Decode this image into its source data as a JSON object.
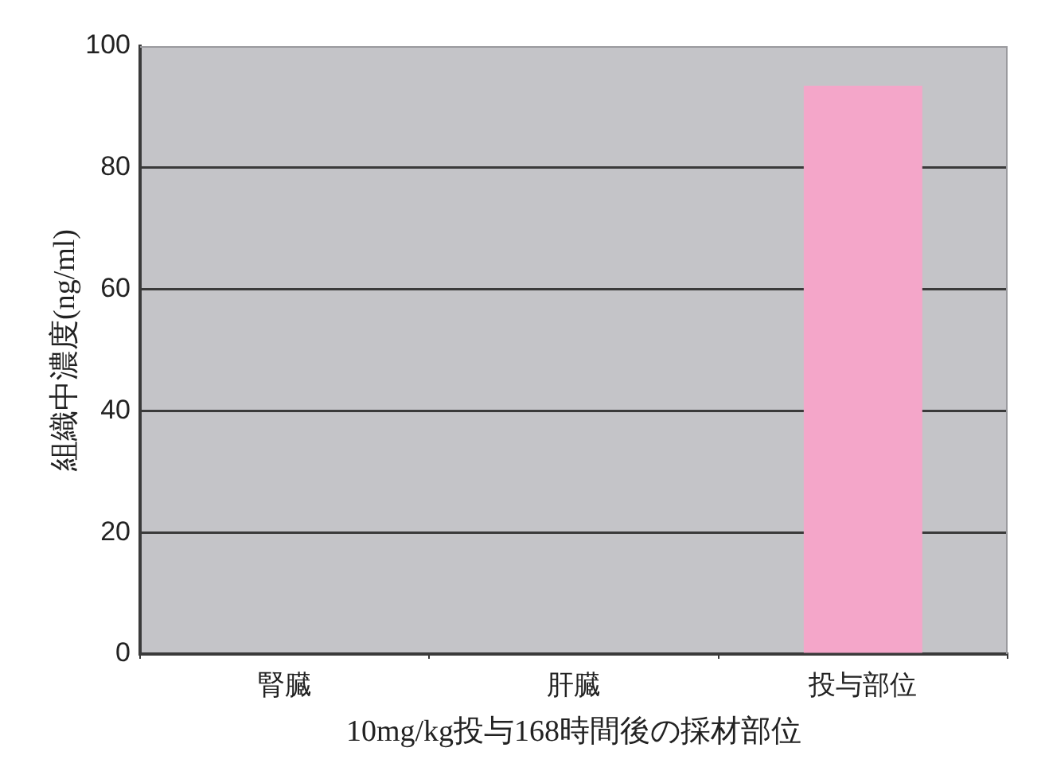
{
  "chart_data": {
    "type": "bar",
    "categories": [
      "腎臓",
      "肝臓",
      "投与部位"
    ],
    "values": [
      0,
      0,
      93.5
    ],
    "color": "#f4a6c9",
    "ylim": [
      0,
      100
    ],
    "yticks": [
      0,
      20,
      40,
      60,
      80,
      100
    ],
    "grid": "y",
    "ylabel": "組織中濃度(ng/ml)",
    "xlabel": "10mg/kg投与168時間後の採材部位"
  }
}
